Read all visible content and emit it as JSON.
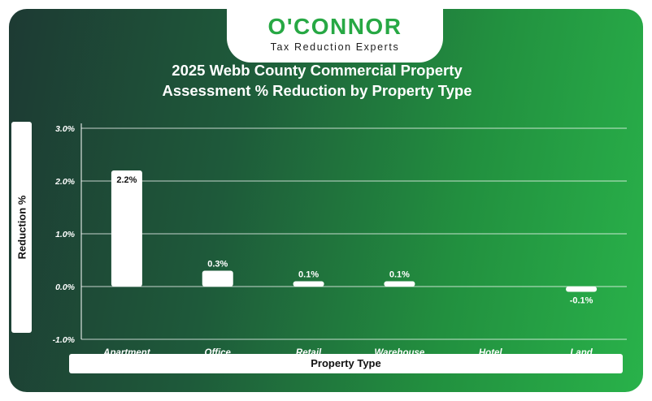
{
  "logo": {
    "wordmark": "O'CONNOR",
    "tagline": "Tax Reduction Experts"
  },
  "colors": {
    "brand_green": "#27a844",
    "bar_fill": "#ffffff",
    "background_gradient": [
      "#1d3a33",
      "#29b24a"
    ]
  },
  "chart_data": {
    "type": "bar",
    "title": "2025 Webb County Commercial Property Assessment % Reduction by Property Type",
    "title_lines": [
      "2025 Webb County Commercial Property",
      "Assessment % Reduction by Property Type"
    ],
    "xlabel": "Property Type",
    "ylabel": "Reduction %",
    "categories": [
      "Apartment",
      "Office",
      "Retail",
      "Warehouse",
      "Hotel",
      "Land"
    ],
    "values": [
      2.2,
      0.3,
      0.1,
      0.1,
      null,
      -0.1
    ],
    "data_labels": [
      "2.2%",
      "0.3%",
      "0.1%",
      "0.1%",
      "",
      "-0.1%"
    ],
    "ylim": [
      -1.0,
      3.0
    ],
    "yticks": [
      3.0,
      2.0,
      1.0,
      0.0,
      -1.0
    ],
    "ytick_labels": [
      "3.0%",
      "2.0%",
      "1.0%",
      "0.0%",
      "-1.0%"
    ],
    "grid": true,
    "legend": "none"
  }
}
